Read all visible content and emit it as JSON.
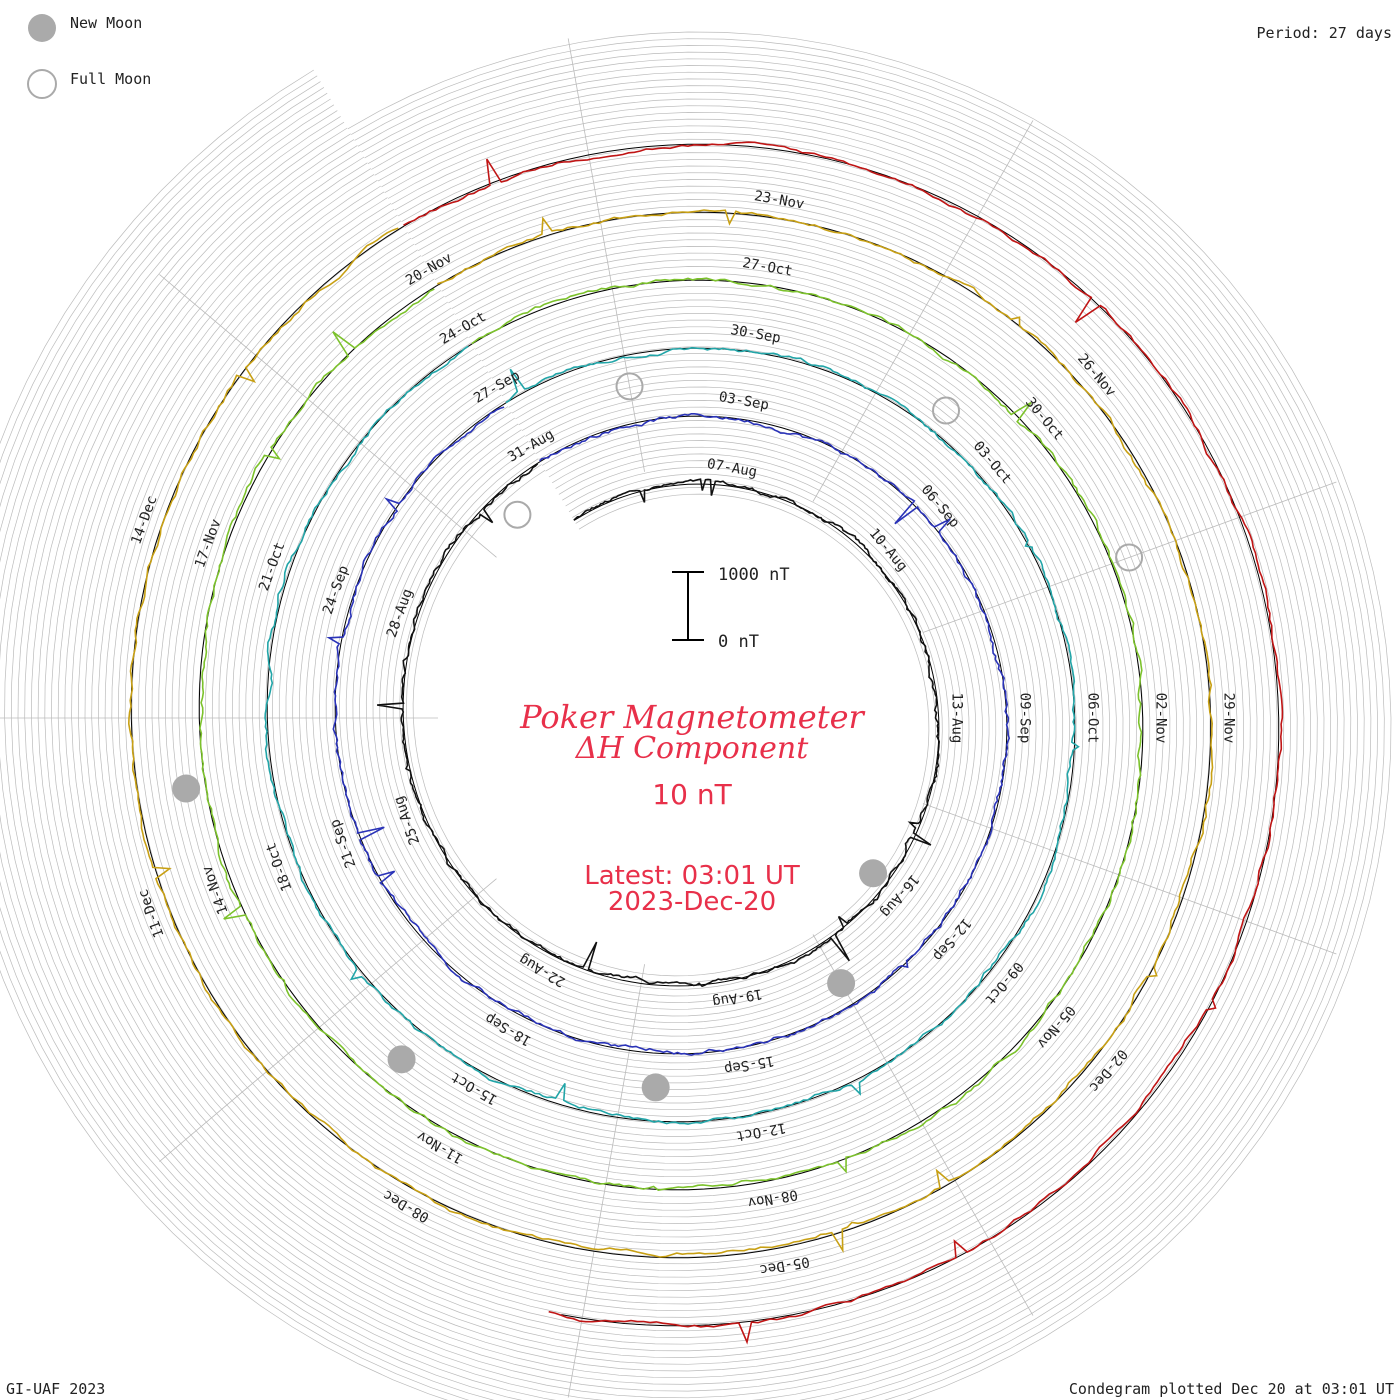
{
  "legend": {
    "new_moon_label": "New Moon",
    "full_moon_label": "Full Moon"
  },
  "period_text": "Period: 27 days",
  "title_line1": "Poker Magnetometer",
  "title_line2": "ΔH Component",
  "baseline_text": "10 nT",
  "latest_line1": "Latest: 03:01 UT",
  "latest_line2": "2023-Dec-20",
  "scale_top_label": "1000 nT",
  "scale_bottom_label": "0 nT",
  "footer_left": "GI-UAF 2023",
  "footer_right": "Condegram plotted Dec 20 at 03:01 UT",
  "colors": {
    "title": "#e8304a",
    "grid": "#bbbbbb",
    "baseline": "#000000",
    "moon_fill": "#aaaaaa",
    "moon_ring": "#aaaaaa"
  },
  "chart_data": {
    "type": "line",
    "period_days": 27,
    "scale_nT": [
      0,
      1000
    ],
    "rotations": [
      {
        "color": "#111111",
        "labels": [
          "07-Aug",
          "10-Aug",
          "13-Aug",
          "16-Aug",
          "19-Aug",
          "22-Aug",
          "25-Aug",
          "28-Aug",
          "31-Aug"
        ]
      },
      {
        "color": "#2a33b8",
        "labels": [
          "03-Sep",
          "06-Sep",
          "09-Sep",
          "12-Sep",
          "15-Sep",
          "18-Sep",
          "21-Sep",
          "24-Sep",
          "27-Sep"
        ]
      },
      {
        "color": "#22a5a8",
        "labels": [
          "30-Sep",
          "03-Oct",
          "06-Oct",
          "09-Oct",
          "12-Oct",
          "15-Oct",
          "18-Oct",
          "21-Oct",
          "24-Oct"
        ]
      },
      {
        "color": "#7cc22c",
        "labels": [
          "27-Oct",
          "30-Oct",
          "02-Nov",
          "05-Nov",
          "08-Nov",
          "11-Nov",
          "14-Nov",
          "17-Nov",
          "20-Nov"
        ]
      },
      {
        "color": "#c8a014",
        "labels": [
          "23-Nov",
          "26-Nov",
          "29-Nov",
          "02-Dec",
          "05-Dec",
          "08-Dec",
          "11-Dec",
          "14-Dec"
        ]
      },
      {
        "color": "#c01515",
        "labels": []
      }
    ],
    "new_moons": [
      "16-Aug",
      "15-Sep",
      "14-Oct",
      "13-Nov",
      "12-Dec"
    ],
    "full_moons": [
      "31-Aug",
      "29-Sep",
      "28-Oct",
      "27-Nov"
    ]
  }
}
